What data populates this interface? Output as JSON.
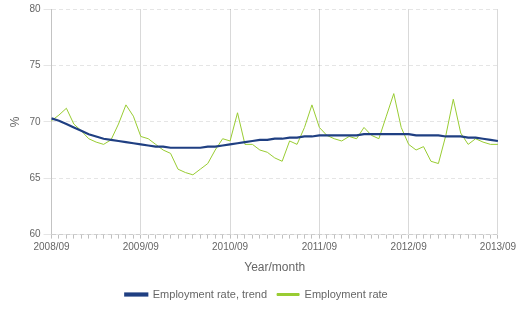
{
  "chart_data": {
    "type": "line",
    "xlabel": "Year/month",
    "ylabel": "%",
    "categories": [
      "2008/09",
      null,
      null,
      null,
      null,
      null,
      null,
      null,
      null,
      null,
      null,
      null,
      "2009/09",
      null,
      null,
      null,
      null,
      null,
      null,
      null,
      null,
      null,
      null,
      null,
      "2010/09",
      null,
      null,
      null,
      null,
      null,
      null,
      null,
      null,
      null,
      null,
      null,
      "2011/09",
      null,
      null,
      null,
      null,
      null,
      null,
      null,
      null,
      null,
      null,
      null,
      "2012/09",
      null,
      null,
      null,
      null,
      null,
      null,
      null,
      null,
      null,
      null,
      null,
      "2013/09"
    ],
    "series": [
      {
        "name": "Employment rate",
        "color": "#99cc33",
        "values": [
          70.1,
          70.6,
          71.2,
          69.8,
          69.2,
          68.5,
          68.2,
          68.0,
          68.4,
          69.8,
          71.5,
          70.5,
          68.7,
          68.5,
          68.0,
          67.5,
          67.2,
          65.8,
          65.5,
          65.3,
          65.8,
          66.3,
          67.5,
          68.5,
          68.3,
          70.8,
          68.0,
          68.0,
          67.5,
          67.3,
          66.8,
          66.5,
          68.3,
          68.0,
          69.5,
          71.5,
          69.5,
          68.8,
          68.5,
          68.3,
          68.7,
          68.5,
          69.5,
          68.8,
          68.5,
          70.5,
          72.5,
          69.5,
          68.0,
          67.5,
          67.8,
          66.5,
          66.3,
          68.8,
          72.0,
          69.0,
          68.0,
          68.5,
          68.2,
          68.0,
          68.0
        ]
      },
      {
        "name": "Employment rate, trend",
        "color": "#1f3f82",
        "values": [
          70.3,
          70.1,
          69.8,
          69.5,
          69.2,
          68.9,
          68.7,
          68.5,
          68.4,
          68.3,
          68.2,
          68.1,
          68.0,
          67.9,
          67.8,
          67.8,
          67.7,
          67.7,
          67.7,
          67.7,
          67.7,
          67.8,
          67.8,
          67.9,
          68.0,
          68.1,
          68.2,
          68.3,
          68.4,
          68.4,
          68.5,
          68.5,
          68.6,
          68.6,
          68.7,
          68.7,
          68.8,
          68.8,
          68.8,
          68.8,
          68.8,
          68.8,
          68.9,
          68.9,
          68.9,
          68.9,
          68.9,
          68.9,
          68.9,
          68.8,
          68.8,
          68.8,
          68.8,
          68.7,
          68.7,
          68.7,
          68.6,
          68.6,
          68.5,
          68.4,
          68.3
        ]
      }
    ],
    "ylim": [
      60,
      80
    ],
    "yticks": [
      60,
      65,
      70,
      75,
      80
    ],
    "grid": true,
    "legend": "lower center"
  }
}
